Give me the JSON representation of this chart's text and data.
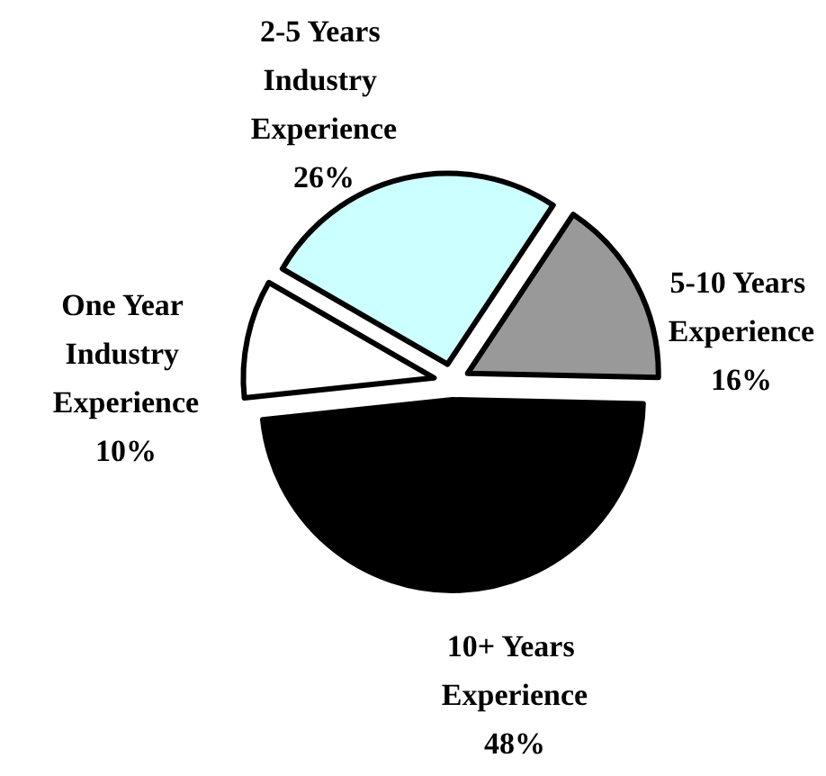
{
  "chart_data": {
    "type": "pie",
    "categories": [
      "2-5 Years Industry Experience",
      "5-10 Years Experience",
      "10+ Years Experience",
      "One Year Industry Experience"
    ],
    "values": [
      26,
      16,
      48,
      10
    ],
    "value_labels": [
      "26%",
      "16%",
      "48%",
      "10%"
    ],
    "colors": [
      "#ccffff",
      "#999999",
      "#000000",
      "#ffffff"
    ]
  }
}
